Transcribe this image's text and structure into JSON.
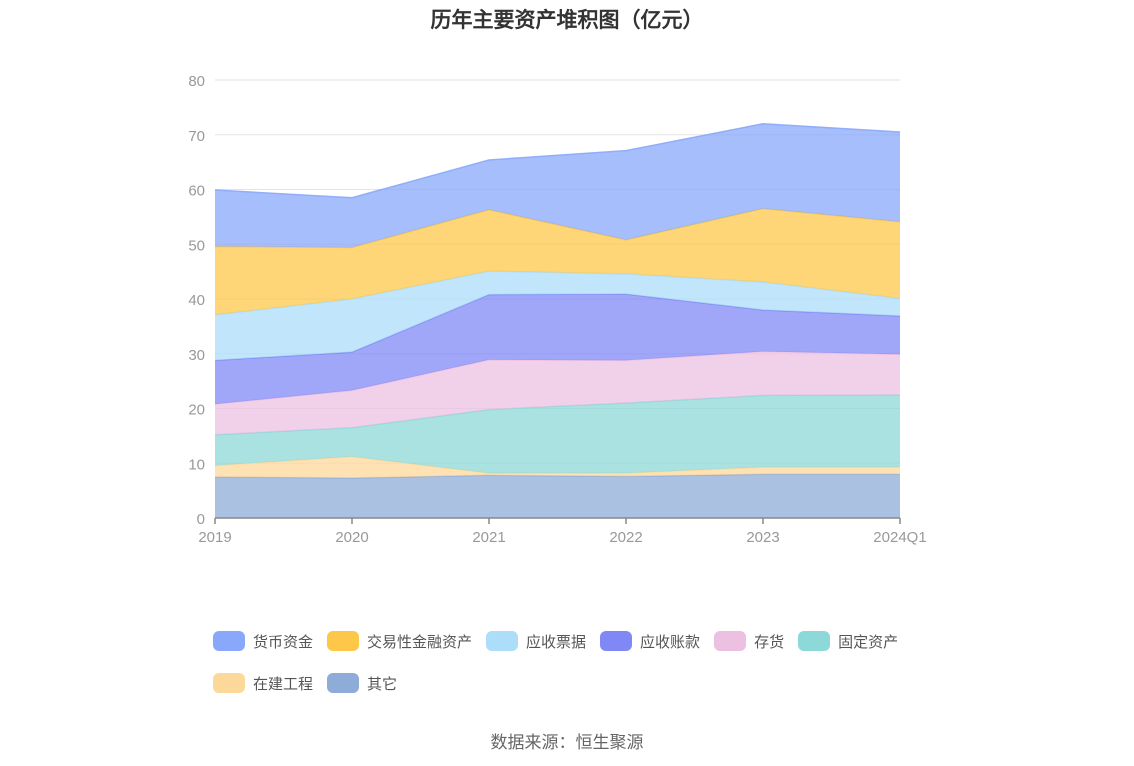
{
  "title": "历年主要资产堆积图（亿元）",
  "source": "数据来源：恒生聚源",
  "chart_data": {
    "type": "area",
    "stacked": true,
    "categories": [
      "2019",
      "2020",
      "2021",
      "2022",
      "2023",
      "2024Q1"
    ],
    "ylim": [
      0,
      80
    ],
    "yticks": [
      0,
      10,
      20,
      30,
      40,
      50,
      60,
      70,
      80
    ],
    "legend_position": "bottom",
    "series": [
      {
        "name": "其它",
        "color": "#8eacd8",
        "values": [
          7.5,
          7.3,
          7.8,
          7.6,
          8.0,
          8.0
        ]
      },
      {
        "name": "在建工程",
        "color": "#fdd89b",
        "values": [
          2.1,
          3.9,
          0.4,
          0.6,
          1.3,
          1.3
        ]
      },
      {
        "name": "固定资产",
        "color": "#8dd8d8",
        "values": [
          5.6,
          5.3,
          11.6,
          12.8,
          13.1,
          13.2
        ]
      },
      {
        "name": "存货",
        "color": "#ecc0e1",
        "values": [
          5.6,
          6.8,
          9.1,
          7.8,
          8.0,
          7.4
        ]
      },
      {
        "name": "应收账款",
        "color": "#8088f5",
        "values": [
          8.0,
          7.0,
          11.9,
          12.1,
          7.6,
          7.0
        ]
      },
      {
        "name": "应收票据",
        "color": "#acdefa",
        "values": [
          8.3,
          9.7,
          4.3,
          3.7,
          5.1,
          3.2
        ]
      },
      {
        "name": "交易性金融资产",
        "color": "#fdc84a",
        "values": [
          12.5,
          9.4,
          11.2,
          6.2,
          13.4,
          14.0
        ]
      },
      {
        "name": "货币资金",
        "color": "#8aa8fb",
        "values": [
          10.3,
          9.1,
          9.1,
          16.3,
          15.5,
          16.4
        ]
      }
    ]
  },
  "legend": {
    "row1": [
      "货币资金",
      "交易性金融资产",
      "应收票据",
      "应收账款",
      "存货",
      "固定资产"
    ],
    "row2": [
      "在建工程",
      "其它"
    ]
  }
}
